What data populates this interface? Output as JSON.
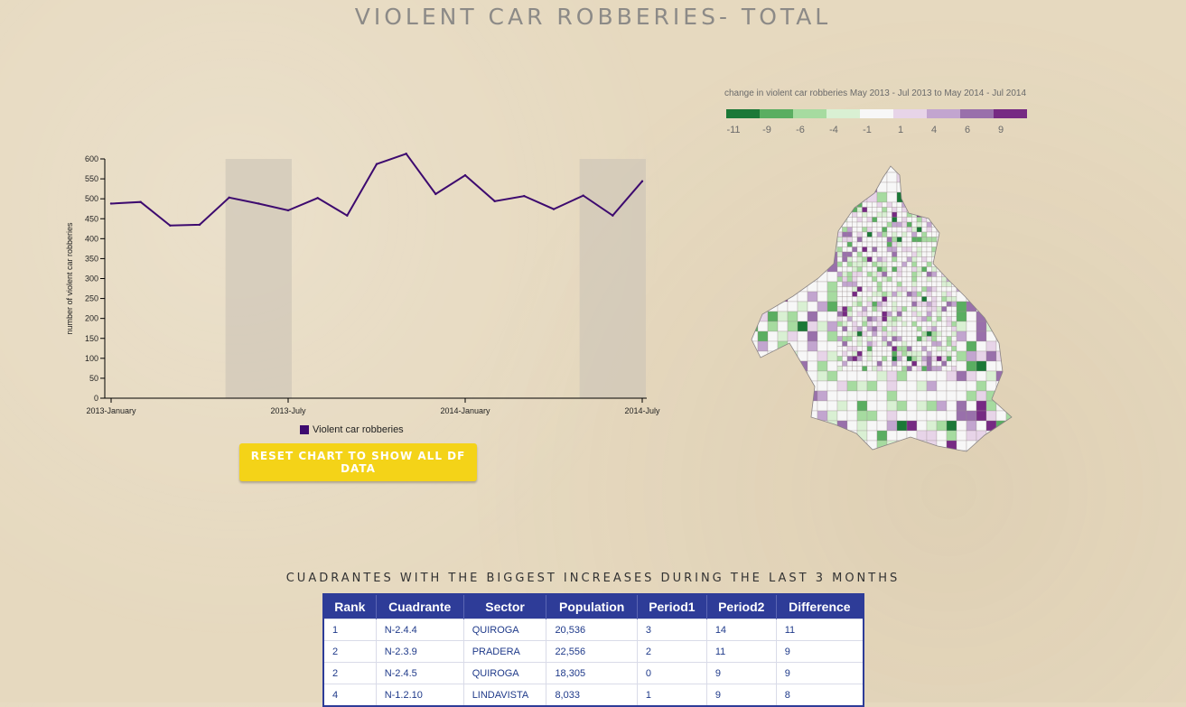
{
  "page": {
    "title": "VIOLENT CAR ROBBERIES- TOTAL",
    "reset_button": "RESET CHART TO SHOW ALL DF DATA",
    "table_heading": "CUADRANTES WITH THE BIGGEST INCREASES DURING THE LAST 3 MONTHS"
  },
  "chart_data": {
    "type": "line",
    "title": "",
    "xlabel": "",
    "ylabel": "number of violent car robberies",
    "ylim": [
      0,
      600
    ],
    "yticks": [
      0,
      50,
      100,
      150,
      200,
      250,
      300,
      350,
      400,
      450,
      500,
      550,
      600
    ],
    "xtick_labels": [
      "2013-January",
      "2013-July",
      "2014-January",
      "2014-July"
    ],
    "legend": "bottom",
    "series": [
      {
        "name": "Violent car robberies",
        "color": "#3d0a6f",
        "values": [
          488,
          492,
          433,
          435,
          503,
          488,
          471,
          502,
          458,
          587,
          613,
          512,
          559,
          494,
          507,
          474,
          508,
          458,
          544
        ]
      }
    ],
    "highlight_ranges": [
      [
        4,
        6
      ],
      [
        16,
        18
      ]
    ]
  },
  "map_legend": {
    "title": "change in violent car robberies May 2013 - Jul 2013 to May 2014 - Jul 2014",
    "colors": [
      "#1b7837",
      "#5aae61",
      "#a6dba0",
      "#d9f0d3",
      "#f7f7f7",
      "#e7d4e8",
      "#c2a5cf",
      "#9970ab",
      "#762a83"
    ],
    "labels": [
      "-11",
      "-9",
      "-6",
      "-4",
      "-1",
      "1",
      "4",
      "6",
      "9"
    ]
  },
  "table": {
    "headers": [
      "Rank",
      "Cuadrante",
      "Sector",
      "Population",
      "Period1",
      "Period2",
      "Difference"
    ],
    "rows": [
      [
        "1",
        "N-2.4.4",
        "QUIROGA",
        "20,536",
        "3",
        "14",
        "11"
      ],
      [
        "2",
        "N-2.3.9",
        "PRADERA",
        "22,556",
        "2",
        "11",
        "9"
      ],
      [
        "2",
        "N-2.4.5",
        "QUIROGA",
        "18,305",
        "0",
        "9",
        "9"
      ],
      [
        "4",
        "N-1.2.10",
        "LINDAVISTA",
        "8,033",
        "1",
        "9",
        "8"
      ]
    ]
  }
}
